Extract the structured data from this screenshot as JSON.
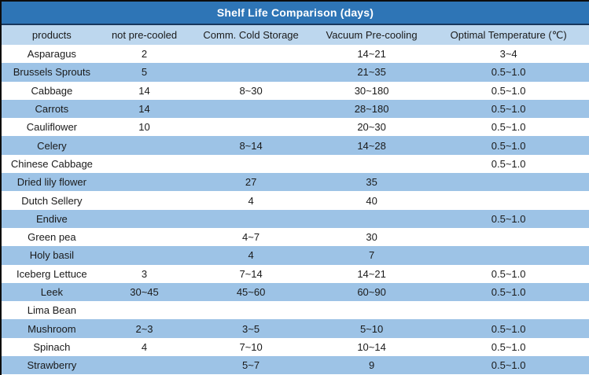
{
  "title_bar": {
    "title": "Shelf Life Comparison (days)"
  },
  "chart_data": {
    "type": "table",
    "title": "Shelf Life Comparison (days)",
    "columns": [
      "products",
      "not pre-cooled",
      "Comm. Cold Storage",
      "Vacuum Pre-cooling",
      "Optimal Temperature (℃)"
    ],
    "rows": [
      [
        "Asparagus",
        "2",
        "",
        "14~21",
        "3~4"
      ],
      [
        "Brussels Sprouts",
        "5",
        "",
        "21~35",
        "0.5~1.0"
      ],
      [
        "Cabbage",
        "14",
        "8~30",
        "30~180",
        "0.5~1.0"
      ],
      [
        "Carrots",
        "14",
        "",
        "28~180",
        "0.5~1.0"
      ],
      [
        "Cauliflower",
        "10",
        "",
        "20~30",
        "0.5~1.0"
      ],
      [
        "Celery",
        "",
        "8~14",
        "14~28",
        "0.5~1.0"
      ],
      [
        "Chinese Cabbage",
        "",
        "",
        "",
        "0.5~1.0"
      ],
      [
        "Dried lily flower",
        "",
        "27",
        "35",
        ""
      ],
      [
        "Dutch Sellery",
        "",
        "4",
        "40",
        ""
      ],
      [
        "Endive",
        "",
        "",
        "",
        "0.5~1.0"
      ],
      [
        "Green pea",
        "",
        "4~7",
        "30",
        ""
      ],
      [
        "Holy basil",
        "",
        "4",
        "7",
        ""
      ],
      [
        "Iceberg Lettuce",
        "3",
        "7~14",
        "14~21",
        "0.5~1.0"
      ],
      [
        "Leek",
        "30~45",
        "45~60",
        "60~90",
        "0.5~1.0"
      ],
      [
        "Lima Bean",
        "",
        "",
        "",
        ""
      ],
      [
        "Mushroom",
        "2~3",
        "3~5",
        "5~10",
        "0.5~1.0"
      ],
      [
        "Spinach",
        "4",
        "7~10",
        "10~14",
        "0.5~1.0"
      ],
      [
        "Strawberry",
        "",
        "5~7",
        "9",
        "0.5~1.0"
      ]
    ],
    "layout": {
      "striped": true,
      "stripe_start": "white",
      "cell_align": "center"
    }
  },
  "colors": {
    "title_bg": "#2E75B6",
    "title_text": "#FFFFFF",
    "header_bg": "#BDD7EE",
    "stripe_bg": "#9DC3E6",
    "row_bg": "#FFFFFF",
    "text": "#1A1A1A",
    "outer_border": "#0D0D0D",
    "title_divider": "#17375D"
  }
}
